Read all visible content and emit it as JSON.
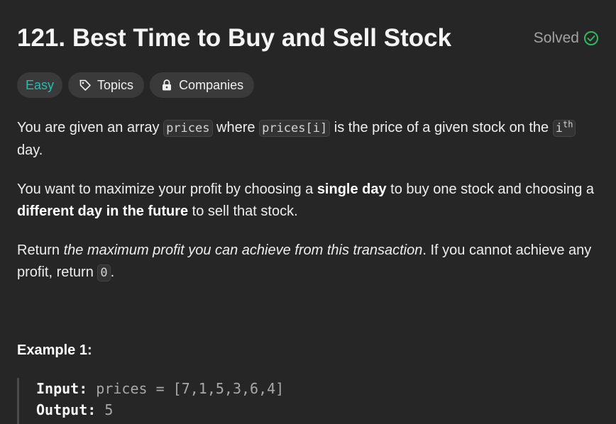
{
  "problem": {
    "title": "121. Best Time to Buy and Sell Stock",
    "status": "Solved"
  },
  "tags": {
    "difficulty": "Easy",
    "topics": "Topics",
    "companies": "Companies"
  },
  "description": {
    "p1": {
      "t1": "You are given an array ",
      "c1": "prices",
      "t2": " where ",
      "c2": "prices[i]",
      "t3": " is the price of a given stock on the ",
      "c3": "i",
      "sup": "th",
      "t4": " day."
    },
    "p2": {
      "t1": "You want to maximize your profit by choosing a ",
      "b1": "single day",
      "t2": " to buy one stock and choosing a ",
      "b2": "different day in the future",
      "t3": " to sell that stock."
    },
    "p3": {
      "t1": "Return ",
      "i1": "the maximum profit you can achieve from this transaction",
      "t2": ". If you cannot achieve any profit, return ",
      "c1": "0",
      "t3": "."
    }
  },
  "example": {
    "title": "Example 1:",
    "input_label": "Input:",
    "input_value": "prices = [7,1,5,3,6,4]",
    "output_label": "Output:",
    "output_value": "5"
  },
  "colors": {
    "background": "#262626",
    "easy": "#2cbbb0",
    "solved_check": "#2cbb5d",
    "tag_bg": "#3a3a3a"
  },
  "icons": {
    "solved": "check-circle-icon",
    "topics": "tag-icon",
    "companies": "lock-icon"
  }
}
